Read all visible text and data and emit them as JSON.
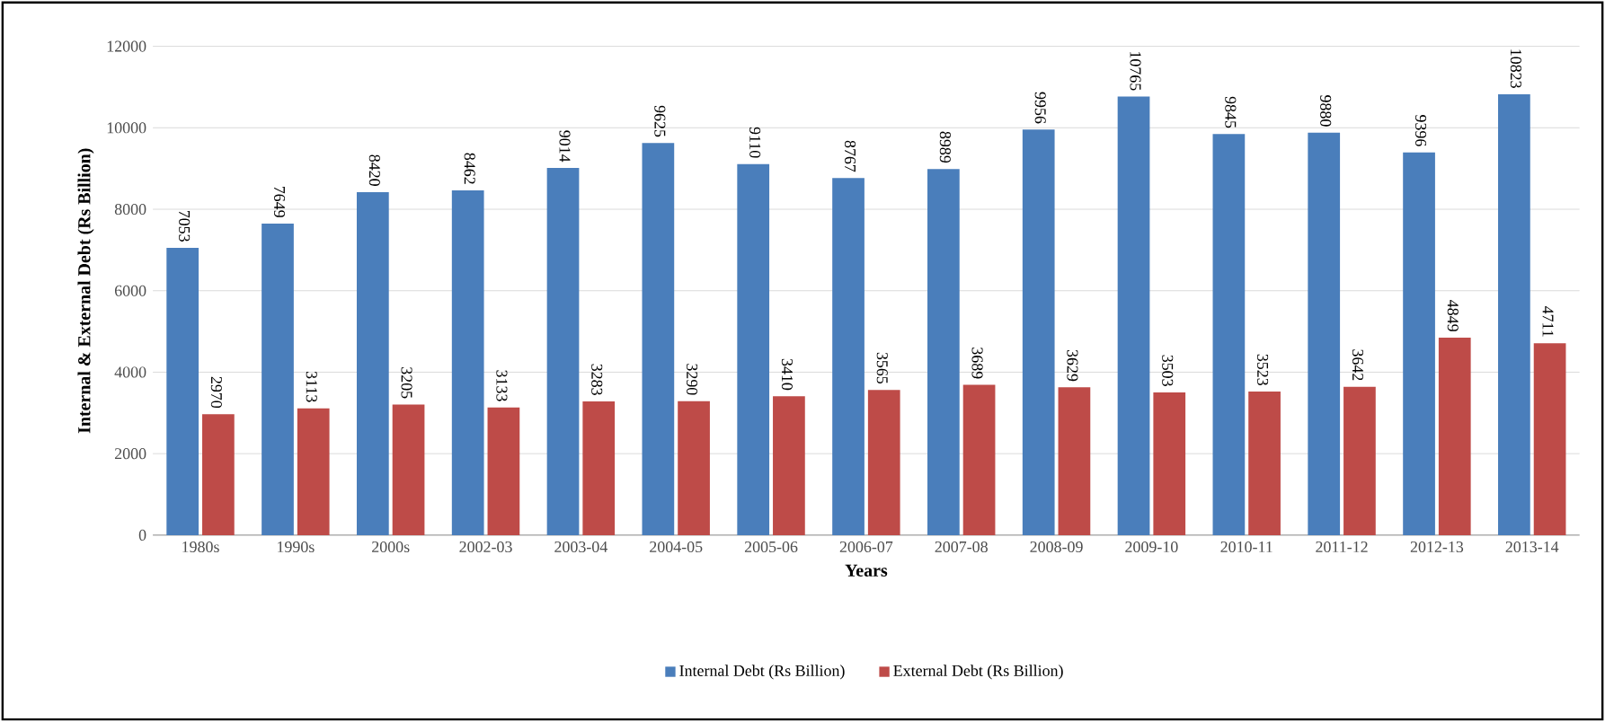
{
  "chart_data": {
    "type": "bar",
    "xlabel": "Years",
    "ylabel": "Internal & External Debt (Rs Billion)",
    "categories": [
      "1980s",
      "1990s",
      "2000s",
      "2002-03",
      "2003-04",
      "2004-05",
      "2005-06",
      "2006-07",
      "2007-08",
      "2008-09",
      "2009-10",
      "2010-11",
      "2011-12",
      "2012-13",
      "2013-14"
    ],
    "series": [
      {
        "name": "Internal Debt (Rs Billion)",
        "color": "#4a7ebb",
        "values": [
          7053,
          7649,
          8420,
          8462,
          9014,
          9625,
          9110,
          8767,
          8989,
          9956,
          10765,
          9845,
          9880,
          9396,
          10823
        ]
      },
      {
        "name": "External Debt (Rs Billion)",
        "color": "#be4b48",
        "values": [
          2970,
          3113,
          3205,
          3133,
          3283,
          3290,
          3410,
          3565,
          3689,
          3629,
          3503,
          3523,
          3642,
          4849,
          4711
        ]
      }
    ],
    "ylim": [
      0,
      12000
    ],
    "yticks": [
      0,
      2000,
      4000,
      6000,
      8000,
      10000,
      12000
    ],
    "grid": "y",
    "legend": "bottom",
    "data_labels": true
  }
}
